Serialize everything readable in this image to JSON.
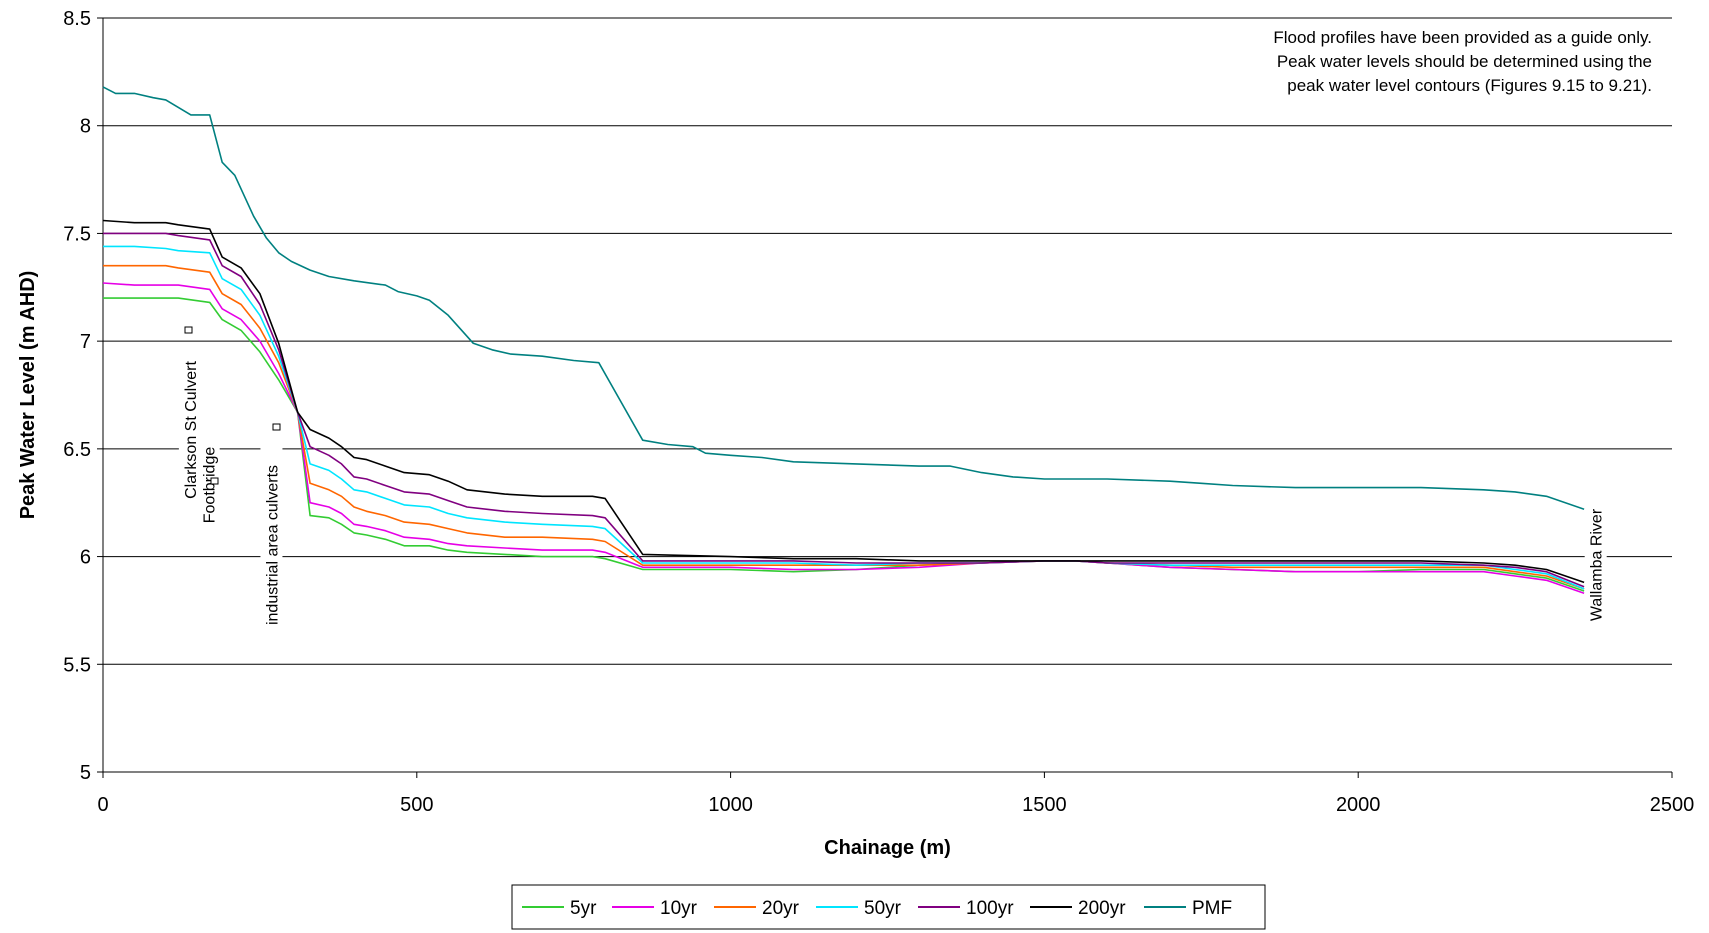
{
  "chart_data": {
    "type": "line",
    "title": "",
    "xlabel": "Chainage (m)",
    "ylabel": "Peak Water Level (m AHD)",
    "xlim": [
      0,
      2500
    ],
    "ylim": [
      5,
      8.5
    ],
    "x_ticks": [
      "0",
      "500",
      "1000",
      "1500",
      "2000",
      "2500"
    ],
    "y_ticks": [
      "5",
      "5.5",
      "6",
      "6.5",
      "7",
      "7.5",
      "8",
      "8.5"
    ],
    "grid": "horizontal",
    "legend_position": "bottom",
    "note_lines": [
      "Flood profiles have been provided as a guide only.",
      "Peak water levels should be determined using the",
      "peak water level contours (Figures 9.15 to 9.21)."
    ],
    "annotations": [
      {
        "text": "Clarkson St Culvert",
        "x": 140
      },
      {
        "text": "Footbridge",
        "x": 170
      },
      {
        "text": "industrial area culverts",
        "x": 270
      },
      {
        "text": "Wallamba River",
        "x": 2380
      }
    ],
    "series": [
      {
        "name": "5yr",
        "color": "#33cc33",
        "x": [
          0,
          50,
          100,
          120,
          170,
          190,
          220,
          250,
          280,
          310,
          330,
          360,
          380,
          400,
          420,
          450,
          480,
          520,
          550,
          580,
          640,
          700,
          780,
          800,
          860,
          1000,
          1100,
          1200,
          1300,
          1400,
          1500,
          1550,
          1600,
          1700,
          1800,
          1900,
          2000,
          2100,
          2200,
          2250,
          2300,
          2360
        ],
        "values": [
          7.2,
          7.2,
          7.2,
          7.2,
          7.18,
          7.1,
          7.05,
          6.95,
          6.82,
          6.67,
          6.19,
          6.18,
          6.15,
          6.11,
          6.1,
          6.08,
          6.05,
          6.05,
          6.03,
          6.02,
          6.01,
          6.0,
          6.0,
          5.99,
          5.94,
          5.94,
          5.93,
          5.94,
          5.96,
          5.97,
          5.98,
          5.98,
          5.97,
          5.95,
          5.94,
          5.93,
          5.93,
          5.94,
          5.94,
          5.92,
          5.9,
          5.84
        ]
      },
      {
        "name": "10yr",
        "color": "#e600e6",
        "x": [
          0,
          50,
          100,
          120,
          170,
          190,
          220,
          250,
          280,
          310,
          330,
          360,
          380,
          400,
          420,
          450,
          480,
          520,
          550,
          580,
          640,
          700,
          780,
          800,
          860,
          1000,
          1100,
          1200,
          1300,
          1400,
          1500,
          1550,
          1600,
          1700,
          1800,
          1900,
          2000,
          2100,
          2200,
          2250,
          2300,
          2360
        ],
        "values": [
          7.27,
          7.26,
          7.26,
          7.26,
          7.24,
          7.15,
          7.1,
          7.0,
          6.85,
          6.67,
          6.25,
          6.23,
          6.2,
          6.15,
          6.14,
          6.12,
          6.09,
          6.08,
          6.06,
          6.05,
          6.04,
          6.03,
          6.03,
          6.02,
          5.95,
          5.95,
          5.94,
          5.94,
          5.95,
          5.97,
          5.98,
          5.98,
          5.97,
          5.95,
          5.94,
          5.93,
          5.93,
          5.93,
          5.93,
          5.91,
          5.89,
          5.83
        ]
      },
      {
        "name": "20yr",
        "color": "#ff6600",
        "x": [
          0,
          50,
          100,
          120,
          170,
          190,
          220,
          250,
          280,
          310,
          330,
          360,
          380,
          400,
          420,
          450,
          480,
          520,
          550,
          580,
          640,
          700,
          780,
          800,
          860,
          1000,
          1100,
          1200,
          1300,
          1400,
          1500,
          1550,
          1600,
          1700,
          1800,
          1900,
          2000,
          2100,
          2200,
          2250,
          2300,
          2360
        ],
        "values": [
          7.35,
          7.35,
          7.35,
          7.34,
          7.32,
          7.22,
          7.17,
          7.06,
          6.9,
          6.67,
          6.34,
          6.31,
          6.28,
          6.23,
          6.21,
          6.19,
          6.16,
          6.15,
          6.13,
          6.11,
          6.09,
          6.09,
          6.08,
          6.07,
          5.96,
          5.96,
          5.96,
          5.96,
          5.96,
          5.97,
          5.98,
          5.98,
          5.97,
          5.96,
          5.95,
          5.95,
          5.95,
          5.95,
          5.95,
          5.93,
          5.91,
          5.85
        ]
      },
      {
        "name": "50yr",
        "color": "#00e5ff",
        "x": [
          0,
          50,
          100,
          120,
          170,
          190,
          220,
          250,
          280,
          310,
          330,
          360,
          380,
          400,
          420,
          450,
          480,
          520,
          550,
          580,
          640,
          700,
          780,
          800,
          860,
          1000,
          1100,
          1200,
          1300,
          1400,
          1500,
          1550,
          1600,
          1700,
          1800,
          1900,
          2000,
          2100,
          2200,
          2250,
          2300,
          2360
        ],
        "values": [
          7.44,
          7.44,
          7.43,
          7.42,
          7.41,
          7.29,
          7.24,
          7.12,
          6.93,
          6.67,
          6.43,
          6.4,
          6.36,
          6.31,
          6.3,
          6.27,
          6.24,
          6.23,
          6.2,
          6.18,
          6.16,
          6.15,
          6.14,
          6.13,
          5.97,
          5.97,
          5.97,
          5.96,
          5.97,
          5.97,
          5.98,
          5.98,
          5.97,
          5.96,
          5.96,
          5.96,
          5.96,
          5.96,
          5.96,
          5.94,
          5.92,
          5.85
        ]
      },
      {
        "name": "100yr",
        "color": "#800080",
        "x": [
          0,
          50,
          100,
          120,
          170,
          190,
          220,
          250,
          280,
          310,
          330,
          360,
          380,
          400,
          420,
          450,
          480,
          520,
          550,
          580,
          640,
          700,
          780,
          800,
          860,
          1000,
          1100,
          1200,
          1300,
          1400,
          1500,
          1550,
          1600,
          1700,
          1800,
          1900,
          2000,
          2100,
          2200,
          2250,
          2300,
          2360
        ],
        "values": [
          7.5,
          7.5,
          7.5,
          7.49,
          7.47,
          7.35,
          7.3,
          7.17,
          6.96,
          6.67,
          6.51,
          6.47,
          6.43,
          6.37,
          6.36,
          6.33,
          6.3,
          6.29,
          6.26,
          6.23,
          6.21,
          6.2,
          6.19,
          6.18,
          5.98,
          5.98,
          5.98,
          5.97,
          5.97,
          5.97,
          5.98,
          5.98,
          5.97,
          5.97,
          5.97,
          5.97,
          5.97,
          5.97,
          5.96,
          5.95,
          5.93,
          5.86
        ]
      },
      {
        "name": "200yr",
        "color": "#000000",
        "x": [
          0,
          50,
          100,
          120,
          170,
          190,
          220,
          250,
          280,
          310,
          330,
          360,
          380,
          400,
          420,
          450,
          480,
          520,
          550,
          580,
          640,
          700,
          780,
          800,
          860,
          1000,
          1100,
          1200,
          1300,
          1400,
          1500,
          1550,
          1600,
          1700,
          1800,
          1900,
          2000,
          2100,
          2200,
          2250,
          2300,
          2360
        ],
        "values": [
          7.56,
          7.55,
          7.55,
          7.54,
          7.52,
          7.39,
          7.34,
          7.22,
          6.99,
          6.67,
          6.59,
          6.55,
          6.51,
          6.46,
          6.45,
          6.42,
          6.39,
          6.38,
          6.35,
          6.31,
          6.29,
          6.28,
          6.28,
          6.27,
          6.01,
          6.0,
          5.99,
          5.99,
          5.98,
          5.98,
          5.98,
          5.98,
          5.98,
          5.98,
          5.98,
          5.98,
          5.98,
          5.98,
          5.97,
          5.96,
          5.94,
          5.88
        ]
      },
      {
        "name": "PMF",
        "color": "#008080",
        "x": [
          0,
          20,
          50,
          80,
          100,
          140,
          170,
          190,
          210,
          240,
          260,
          280,
          300,
          330,
          360,
          400,
          450,
          470,
          500,
          520,
          550,
          590,
          620,
          650,
          700,
          750,
          790,
          860,
          900,
          940,
          960,
          1000,
          1050,
          1100,
          1200,
          1300,
          1350,
          1400,
          1450,
          1500,
          1550,
          1600,
          1700,
          1750,
          1800,
          1900,
          2000,
          2100,
          2200,
          2250,
          2300,
          2360
        ],
        "values": [
          8.18,
          8.15,
          8.15,
          8.13,
          8.12,
          8.05,
          8.05,
          7.83,
          7.77,
          7.58,
          7.48,
          7.41,
          7.37,
          7.33,
          7.3,
          7.28,
          7.26,
          7.23,
          7.21,
          7.19,
          7.12,
          6.99,
          6.96,
          6.94,
          6.93,
          6.91,
          6.9,
          6.54,
          6.52,
          6.51,
          6.48,
          6.47,
          6.46,
          6.44,
          6.43,
          6.42,
          6.42,
          6.39,
          6.37,
          6.36,
          6.36,
          6.36,
          6.35,
          6.34,
          6.33,
          6.32,
          6.32,
          6.32,
          6.31,
          6.3,
          6.28,
          6.22
        ]
      }
    ]
  }
}
